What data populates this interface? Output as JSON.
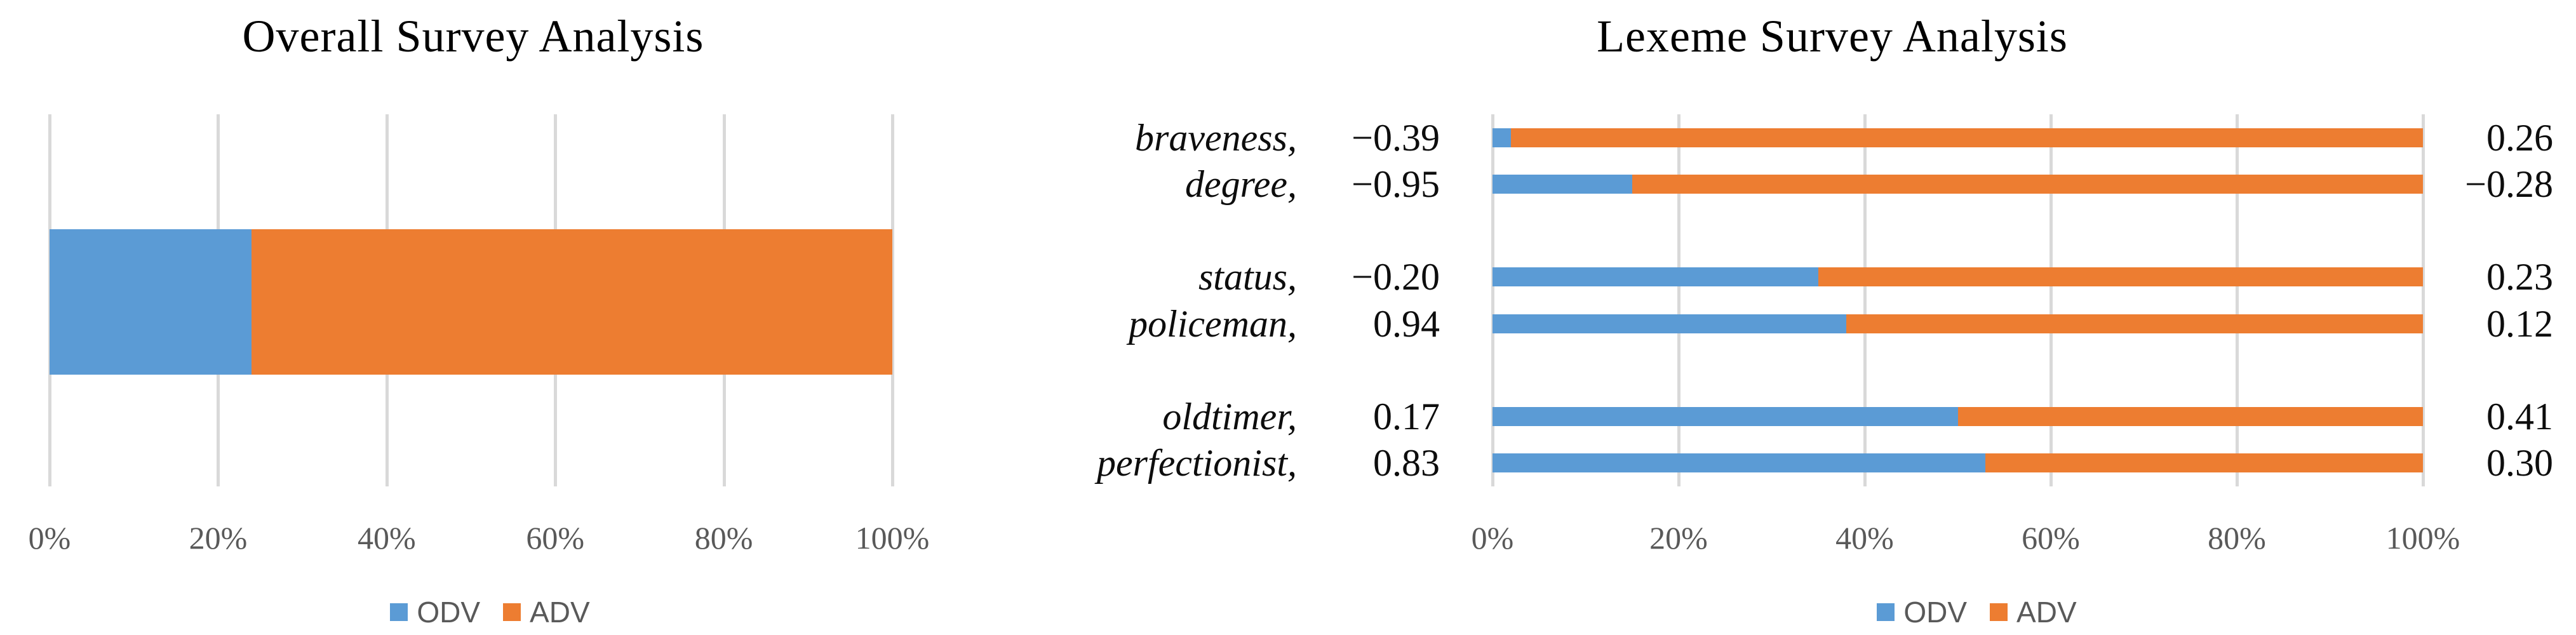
{
  "page": {
    "background": "#ffffff"
  },
  "colors": {
    "odv_blue": "#5B9BD5",
    "adv_orange": "#ED7D31",
    "gridline": "#D9D9D9",
    "axis_text": "#595959",
    "label_text": "#0d0d0d"
  },
  "chart_data": [
    {
      "type": "bar",
      "orientation": "horizontal",
      "stacked": true,
      "title": "Overall Survey Analysis",
      "categories": [
        ""
      ],
      "series": [
        {
          "name": "ODV",
          "color": "#5B9BD5",
          "values": [
            24
          ]
        },
        {
          "name": "ADV",
          "color": "#ED7D31",
          "values": [
            76
          ]
        }
      ],
      "xlim": [
        0,
        100
      ],
      "x_ticks": [
        "0%",
        "20%",
        "40%",
        "60%",
        "80%",
        "100%"
      ],
      "grid": "vertical",
      "legend_position": "bottom"
    },
    {
      "type": "bar",
      "orientation": "horizontal",
      "stacked": true,
      "title": "Lexeme Survey Analysis",
      "categories": [
        "braveness,",
        "degree,",
        "status,",
        "policeman,",
        "oldtimer,",
        "perfectionist,"
      ],
      "category_scores": [
        "−0.39",
        "−0.95",
        "−0.20",
        "0.94",
        "0.17",
        "0.83"
      ],
      "right_value_labels": [
        "0.26",
        "−0.28",
        "0.23",
        "0.12",
        "0.41",
        "0.30"
      ],
      "groups": [
        [
          0,
          1
        ],
        [
          2,
          3
        ],
        [
          4,
          5
        ]
      ],
      "series": [
        {
          "name": "ODV",
          "color": "#5B9BD5",
          "values": [
            2,
            15,
            35,
            38,
            50,
            53
          ]
        },
        {
          "name": "ADV",
          "color": "#ED7D31",
          "values": [
            98,
            85,
            65,
            62,
            50,
            47
          ]
        }
      ],
      "xlim": [
        0,
        100
      ],
      "x_ticks": [
        "0%",
        "20%",
        "40%",
        "60%",
        "80%",
        "100%"
      ],
      "grid": "vertical",
      "legend_position": "bottom"
    }
  ]
}
